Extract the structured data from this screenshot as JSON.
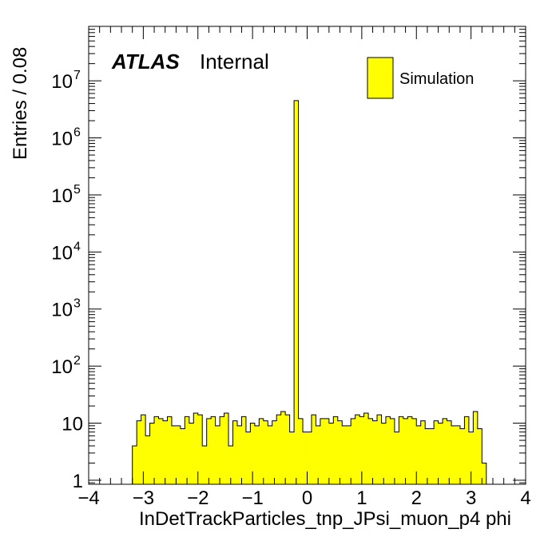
{
  "chart_data": {
    "type": "bar",
    "title": "",
    "xlabel": "InDetTrackParticles_tnp_JPsi_muon_p4 phi",
    "ylabel": "Entries / 0.08",
    "x_range": [
      -4,
      4
    ],
    "y_range": [
      0.85,
      90000000
    ],
    "y_scale": "log",
    "bin_width": 0.08,
    "x_ticks": [
      {
        "value": -4,
        "label": "−4"
      },
      {
        "value": -3,
        "label": "−3"
      },
      {
        "value": -2,
        "label": "−2"
      },
      {
        "value": -1,
        "label": "−1"
      },
      {
        "value": 0,
        "label": "0"
      },
      {
        "value": 1,
        "label": "1"
      },
      {
        "value": 2,
        "label": "2"
      },
      {
        "value": 3,
        "label": "3"
      },
      {
        "value": 4,
        "label": "4"
      }
    ],
    "y_ticks": [
      {
        "value": 1,
        "base": "1",
        "exp": ""
      },
      {
        "value": 10,
        "base": "10",
        "exp": ""
      },
      {
        "value": 100,
        "base": "10",
        "exp": "2"
      },
      {
        "value": 1000,
        "base": "10",
        "exp": "3"
      },
      {
        "value": 10000,
        "base": "10",
        "exp": "4"
      },
      {
        "value": 100000,
        "base": "10",
        "exp": "5"
      },
      {
        "value": 1000000,
        "base": "10",
        "exp": "6"
      },
      {
        "value": 10000000,
        "base": "10",
        "exp": "7"
      }
    ],
    "series": [
      {
        "fill_color": "#ffff00",
        "line_color": "#000000",
        "bin_low_edges": [
          -3.2,
          -3.12,
          -3.04,
          -2.96,
          -2.88,
          -2.8,
          -2.72,
          -2.64,
          -2.56,
          -2.48,
          -2.4,
          -2.32,
          -2.24,
          -2.16,
          -2.08,
          -2.0,
          -1.92,
          -1.84,
          -1.76,
          -1.68,
          -1.6,
          -1.52,
          -1.44,
          -1.36,
          -1.28,
          -1.2,
          -1.12,
          -1.04,
          -0.96,
          -0.88,
          -0.8,
          -0.72,
          -0.64,
          -0.56,
          -0.48,
          -0.4,
          -0.32,
          -0.24,
          -0.16,
          -0.08,
          0.0,
          0.08,
          0.16,
          0.24,
          0.32,
          0.4,
          0.48,
          0.56,
          0.64,
          0.72,
          0.8,
          0.88,
          0.96,
          1.04,
          1.12,
          1.2,
          1.28,
          1.36,
          1.44,
          1.52,
          1.6,
          1.68,
          1.76,
          1.84,
          1.92,
          2.0,
          2.08,
          2.16,
          2.24,
          2.32,
          2.4,
          2.48,
          2.56,
          2.64,
          2.72,
          2.8,
          2.88,
          2.96,
          3.04,
          3.12,
          3.2
        ],
        "values": [
          4,
          11,
          14,
          6,
          10,
          13,
          12,
          11,
          13,
          9,
          9,
          8,
          13,
          10,
          15,
          14,
          4,
          12,
          13,
          9,
          13,
          15,
          4,
          11,
          9,
          13,
          7,
          10,
          9,
          12,
          11,
          9,
          11,
          14,
          16,
          14,
          7,
          4500000,
          12,
          7,
          7,
          14,
          9,
          12,
          12,
          10,
          13,
          11,
          9,
          9,
          12,
          14,
          13,
          15,
          12,
          11,
          14,
          10,
          13,
          12,
          7,
          13,
          12,
          13,
          12,
          9,
          11,
          8,
          8,
          11,
          10,
          12,
          11,
          9,
          9,
          8,
          13,
          7,
          16,
          8,
          2
        ]
      }
    ],
    "legend": {
      "position": "top-right",
      "entries": [
        {
          "label": "Simulation",
          "color": "#ffff00"
        }
      ]
    },
    "annotations": [
      {
        "bold": "ATLAS",
        "text": "Internal",
        "position": "top-left"
      }
    ],
    "grid": false
  }
}
